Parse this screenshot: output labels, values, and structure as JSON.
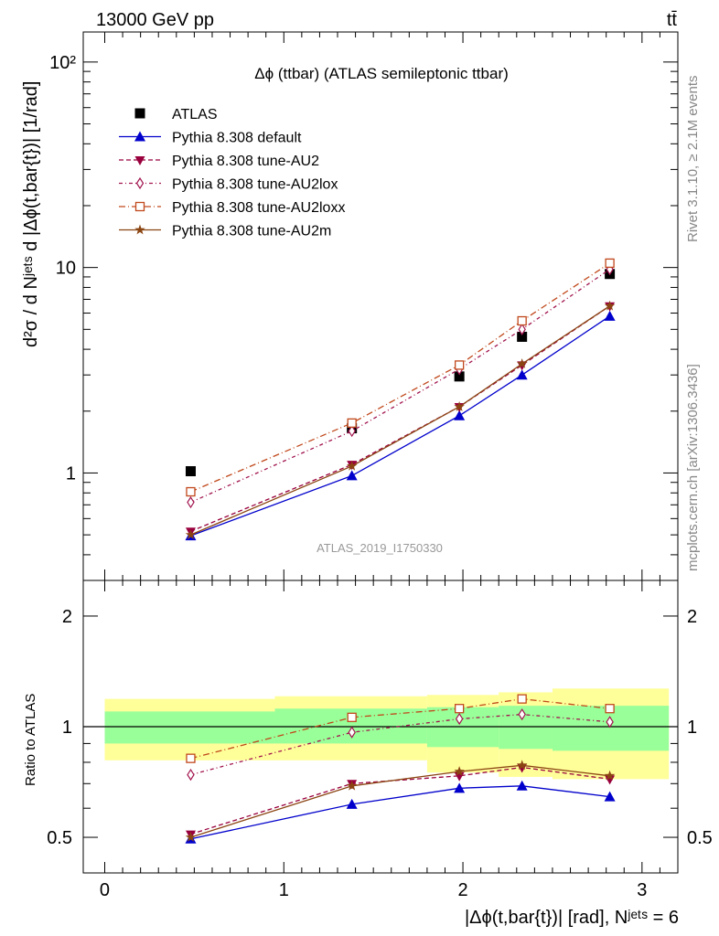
{
  "header": {
    "left": "13000 GeV pp",
    "right": "tt̄",
    "right_side_text": "Rivet 3.1.10, ≥ 2.1M events",
    "right_side_text2": "mcplots.cern.ch [arXiv:1306.3436]"
  },
  "chart_data": [
    {
      "type": "scatter",
      "title": "Δϕ (ttbar) (ATLAS semileptonic ttbar)",
      "watermark": "ATLAS_2019_I1750330",
      "ylabel": "d²σ / d Nʲᵉᵗˢ d |Δϕ(t,bar{t})| [1/rad]",
      "yscale": "log",
      "xlim": [
        -0.12,
        3.2
      ],
      "ylim": [
        0.3,
        140
      ],
      "x_ticks": [
        "0",
        "1",
        "2",
        "3"
      ],
      "y_ticks": [
        "1",
        "10",
        "10²"
      ],
      "legend_position": "top-left",
      "x_edges": [
        0,
        0.95,
        1.8,
        2.2,
        2.5,
        3.15
      ],
      "x": [
        0.48,
        1.38,
        1.98,
        2.33,
        2.82
      ],
      "series": [
        {
          "name": "ATLAS",
          "color": "#000000",
          "marker": "square",
          "values": [
            1.02,
            1.65,
            2.95,
            4.6,
            9.3
          ]
        },
        {
          "name": "Pythia 8.308 default",
          "color": "#0000cc",
          "marker": "triangle",
          "dash": "none",
          "values": [
            0.495,
            0.97,
            1.9,
            3.0,
            5.8
          ]
        },
        {
          "name": "Pythia 8.308 tune-AU2",
          "color": "#99003d",
          "marker": "triangle-down",
          "dash": "5,3",
          "values": [
            0.52,
            1.1,
            2.1,
            3.35,
            6.5
          ]
        },
        {
          "name": "Pythia 8.308 tune-AU2lox",
          "color": "#a2154f",
          "marker": "diamond",
          "dash": "4,3,1,3",
          "values": [
            0.72,
            1.6,
            3.2,
            5.0,
            9.8
          ]
        },
        {
          "name": "Pythia 8.308 tune-AU2loxx",
          "color": "#c0481b",
          "marker": "square-open",
          "dash": "7,3,1,3",
          "values": [
            0.81,
            1.75,
            3.35,
            5.5,
            10.5
          ]
        },
        {
          "name": "Pythia 8.308 tune-AU2m",
          "color": "#8b4513",
          "marker": "star",
          "dash": "none",
          "values": [
            0.5,
            1.08,
            2.1,
            3.4,
            6.5
          ]
        }
      ]
    },
    {
      "type": "scatter",
      "ylabel": "Ratio to ATLAS",
      "xlabel": "|Δϕ(t,bar{t})| [rad], Nʲᵉᵗˢ = 6",
      "yscale": "log",
      "xlim": [
        -0.12,
        3.2
      ],
      "ylim": [
        0.4,
        2.5
      ],
      "x_ticks": [
        "0",
        "1",
        "2",
        "3"
      ],
      "y_ticks": [
        "0.5",
        "1",
        "2"
      ],
      "band_green": [
        [
          0.9,
          1.1
        ],
        [
          0.9,
          1.12
        ],
        [
          0.88,
          1.13
        ],
        [
          0.87,
          1.14
        ],
        [
          0.86,
          1.14
        ]
      ],
      "band_yellow": [
        [
          0.81,
          1.19
        ],
        [
          0.81,
          1.21
        ],
        [
          0.75,
          1.22
        ],
        [
          0.73,
          1.24
        ],
        [
          0.72,
          1.27
        ]
      ],
      "series": [
        {
          "name": "Pythia 8.308 default",
          "values": [
            0.495,
            0.615,
            0.68,
            0.69,
            0.645
          ]
        },
        {
          "name": "Pythia 8.308 tune-AU2",
          "values": [
            0.51,
            0.7,
            0.735,
            0.775,
            0.72
          ]
        },
        {
          "name": "Pythia 8.308 tune-AU2lox",
          "values": [
            0.74,
            0.965,
            1.05,
            1.08,
            1.03
          ]
        },
        {
          "name": "Pythia 8.308 tune-AU2loxx",
          "values": [
            0.82,
            1.06,
            1.12,
            1.19,
            1.12
          ]
        },
        {
          "name": "Pythia 8.308 tune-AU2m",
          "values": [
            0.5,
            0.69,
            0.755,
            0.785,
            0.735
          ]
        }
      ]
    }
  ]
}
